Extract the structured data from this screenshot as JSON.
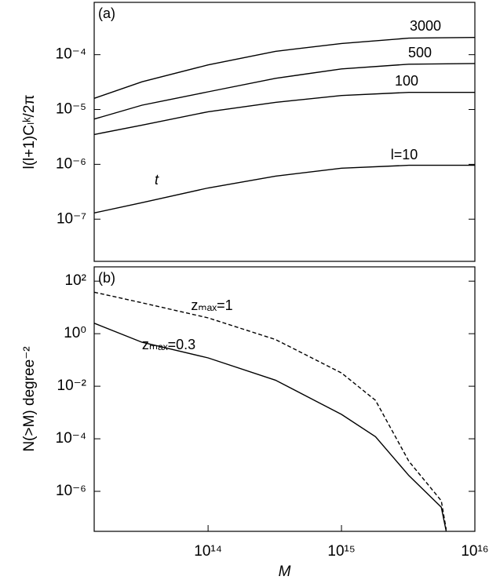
{
  "chart_data": [
    {
      "type": "line",
      "annotations": [
        "(a)",
        "t"
      ],
      "y_label": "l(l+1)Cₗᵏ/2π",
      "log_x": true,
      "log_y": true,
      "xlim": [
        14000000000000.0,
        1e+16
      ],
      "x": [
        14000000000000.0,
        32000000000000.0,
        100000000000000.0,
        320000000000000.0,
        1000000000000000.0,
        3200000000000000.0,
        1e+16
      ],
      "ylim": [
        1.7e-08,
        0.0009
      ],
      "yticks": [
        {
          "value": 0.0001,
          "label": "10⁻⁴"
        },
        {
          "value": 1e-05,
          "label": "10⁻⁵"
        },
        {
          "value": 1e-06,
          "label": "10⁻⁶"
        },
        {
          "value": 1e-07,
          "label": "10⁻⁷"
        }
      ],
      "series": [
        {
          "name": "3000",
          "color": "#000000",
          "linestyle": "solid",
          "values": [
            1.6e-05,
            3.2e-05,
            6.5e-05,
            0.000115,
            0.00016,
            0.0002,
            0.000206
          ]
        },
        {
          "name": "500",
          "color": "#000000",
          "linestyle": "solid",
          "values": [
            6.7e-06,
            1.2e-05,
            2.1e-05,
            3.7e-05,
            5.5e-05,
            6.7e-05,
            6.9e-05
          ]
        },
        {
          "name": "100",
          "color": "#000000",
          "linestyle": "solid",
          "values": [
            3.5e-06,
            5.2e-06,
            9.1e-06,
            1.35e-05,
            1.8e-05,
            2.05e-05,
            2.05e-05
          ]
        },
        {
          "name": "l=10",
          "color": "#000000",
          "linestyle": "solid",
          "values": [
            1.3e-07,
            2e-07,
            3.7e-07,
            6.1e-07,
            8.5e-07,
            9.6e-07,
            9.6e-07
          ]
        }
      ]
    },
    {
      "type": "line",
      "annotations": [
        "(b)"
      ],
      "y_label": "N(>M) degree⁻²",
      "x_label": "M",
      "log_x": true,
      "log_y": true,
      "xlim": [
        14000000000000.0,
        1e+16
      ],
      "xticks": [
        {
          "value": 100000000000000.0,
          "label": "10¹⁴"
        },
        {
          "value": 1000000000000000.0,
          "label": "10¹⁵"
        },
        {
          "value": 1e+16,
          "label": "10¹⁶"
        }
      ],
      "x": [
        14000000000000.0,
        32000000000000.0,
        100000000000000.0,
        320000000000000.0,
        1000000000000000.0,
        1800000000000000.0,
        3200000000000000.0,
        5600000000000000.0,
        6100000000000000.0
      ],
      "ylim": [
        3e-08,
        350
      ],
      "yticks": [
        {
          "value": 100,
          "label": "10²"
        },
        {
          "value": 1,
          "label": "10⁰"
        },
        {
          "value": 0.01,
          "label": "10⁻²"
        },
        {
          "value": 0.0001,
          "label": "10⁻⁴"
        },
        {
          "value": 1e-06,
          "label": "10⁻⁶"
        }
      ],
      "series": [
        {
          "name": "zₘₐₓ=1",
          "color": "#000000",
          "linestyle": "dashed",
          "values": [
            38,
            15,
            4,
            0.6,
            0.032,
            0.0029,
            1.4e-05,
            4.4e-07,
            3.5e-08
          ]
        },
        {
          "name": "zₘₐₓ=0.3",
          "color": "#000000",
          "linestyle": "solid",
          "values": [
            2.5,
            0.47,
            0.12,
            0.017,
            0.00085,
            0.00012,
            4e-06,
            2.5e-07,
            3e-08
          ]
        }
      ]
    }
  ]
}
